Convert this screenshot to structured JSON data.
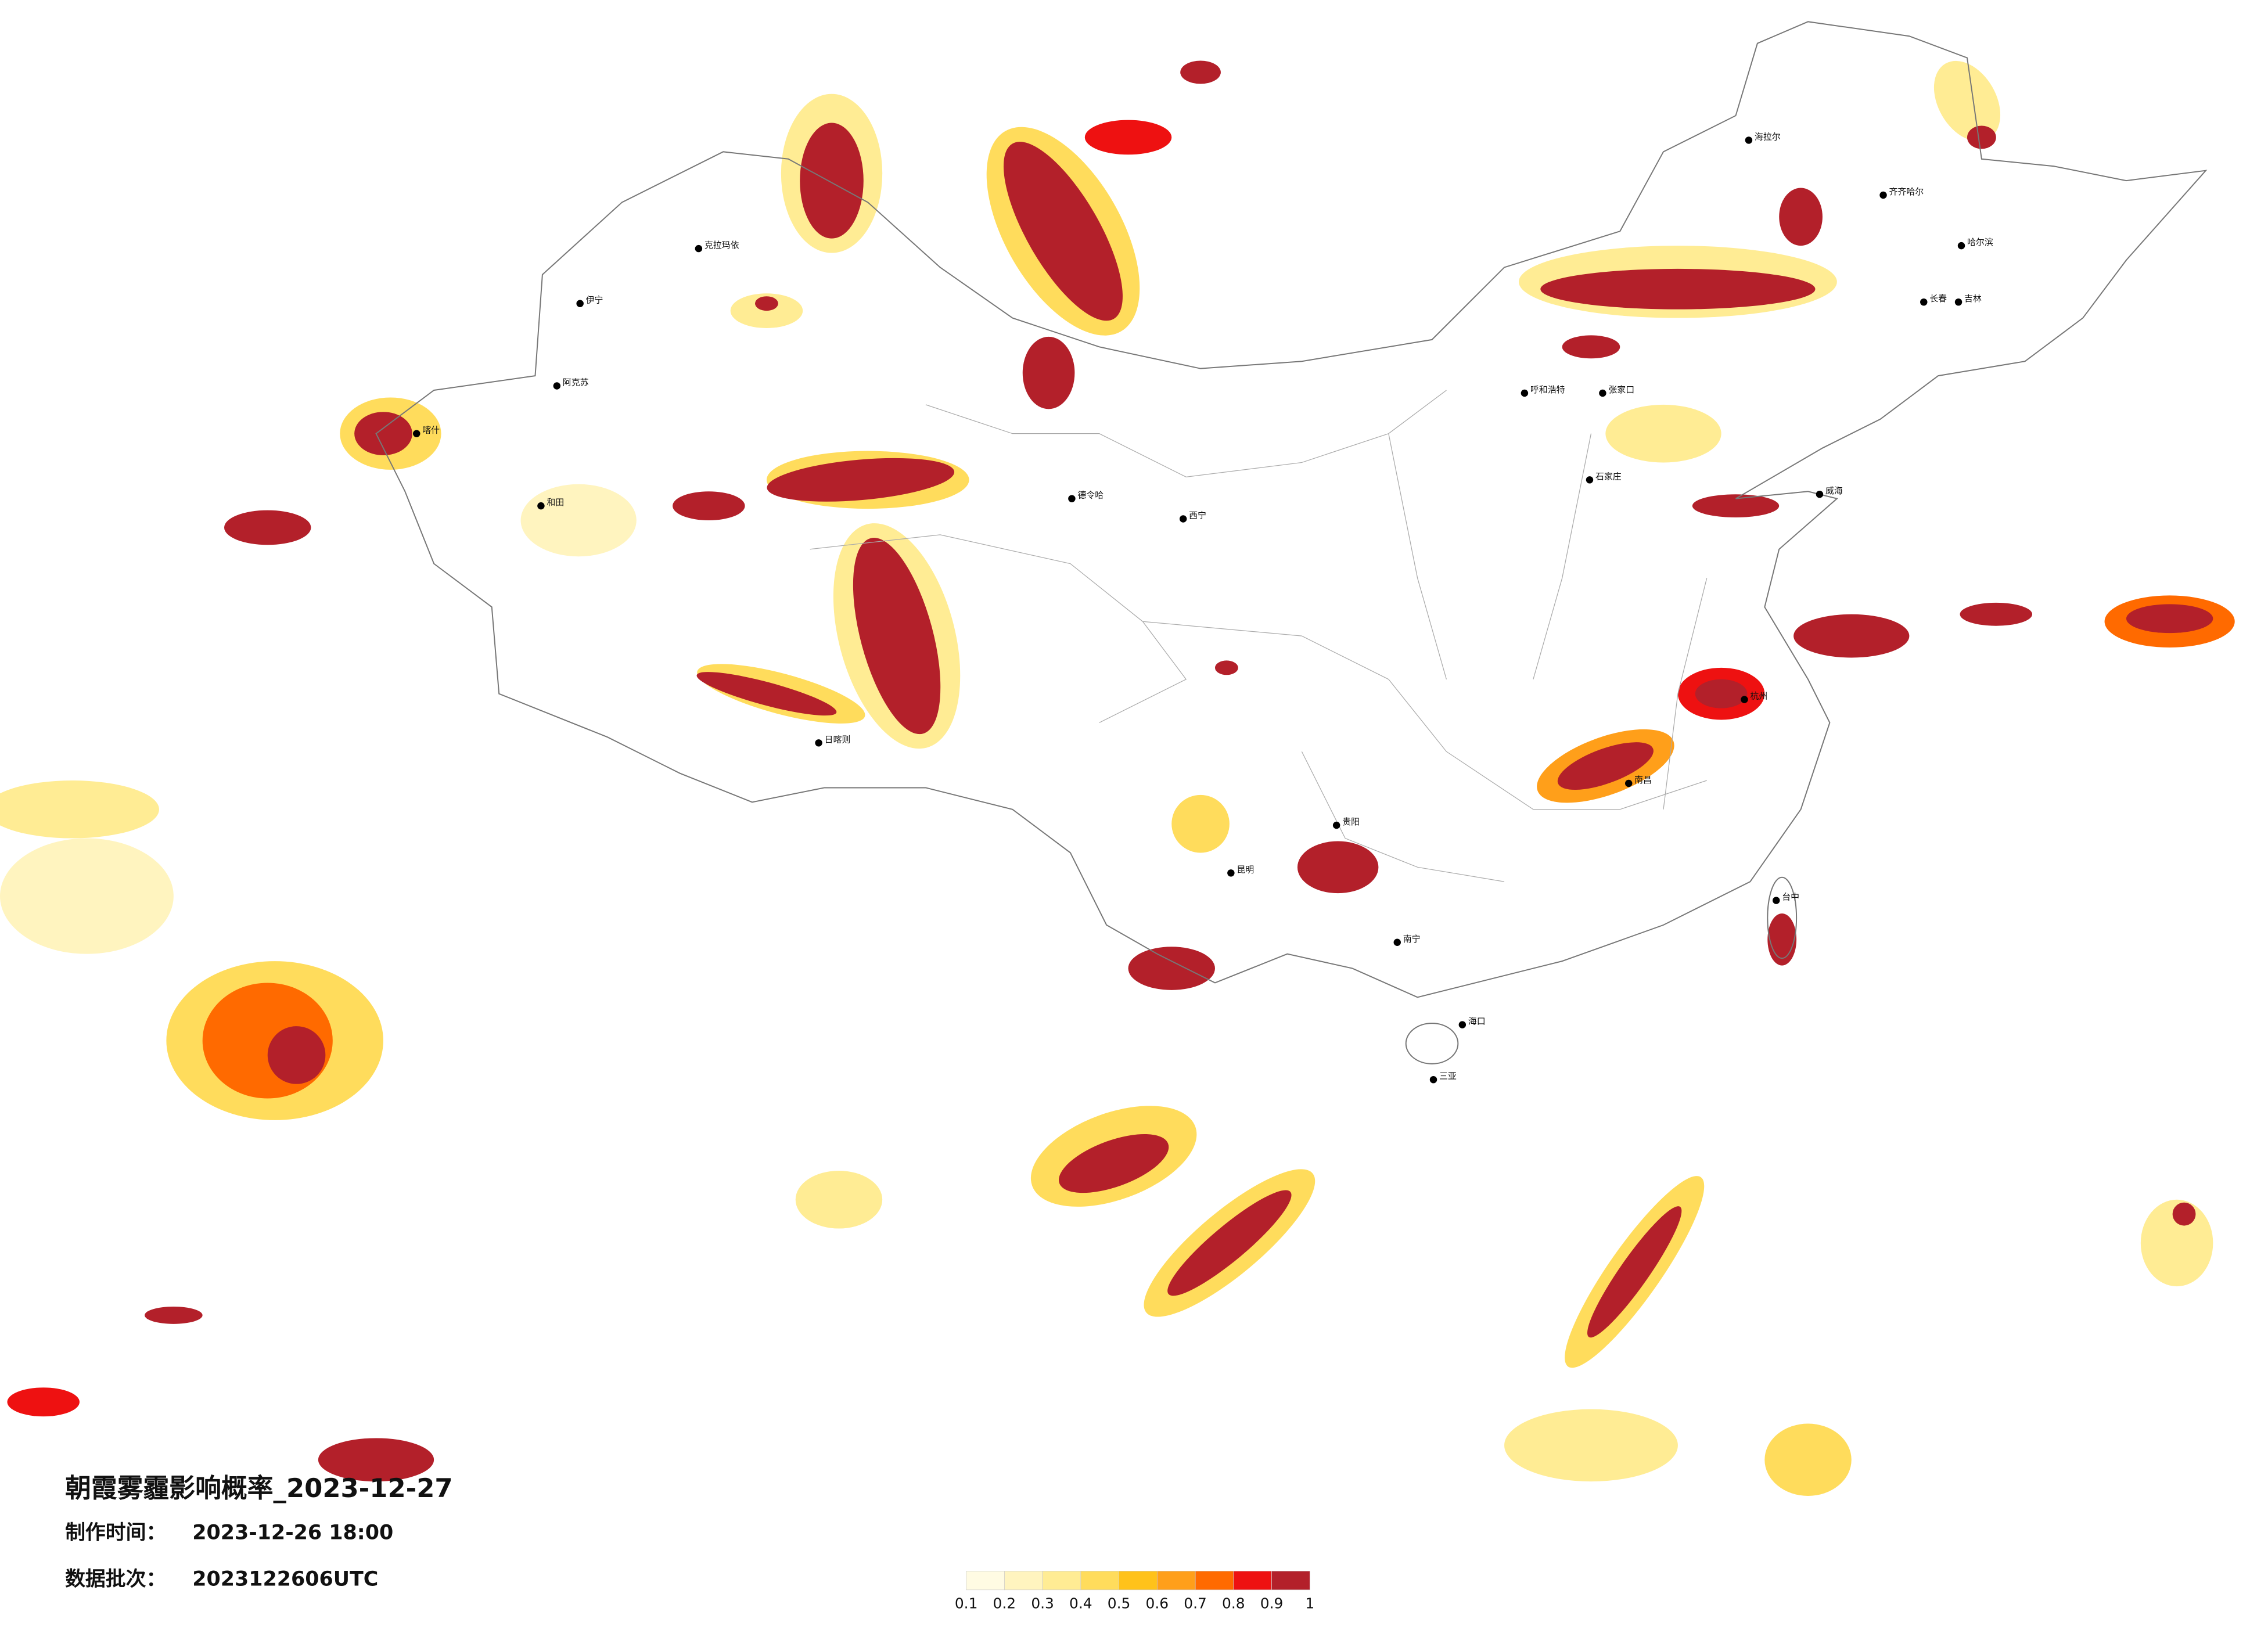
{
  "title": "朝霞雾霾影响概率_2023-12-27",
  "made_time": {
    "label": "制作时间：",
    "value": "2023-12-26 18:00"
  },
  "data_batch": {
    "label": "数据批次：",
    "value": "2023122606UTC"
  },
  "legend": {
    "colors": [
      "#fffbe3",
      "#fff4bf",
      "#ffec94",
      "#ffdc5c",
      "#ffc21a",
      "#ff9f1a",
      "#ff6a00",
      "#ee1111",
      "#b3202a"
    ],
    "ticks": [
      0.1,
      0.2,
      0.3,
      0.4,
      0.5,
      0.6,
      0.7,
      0.8,
      0.9,
      1
    ]
  },
  "cities": [
    "伊宁",
    "克拉玛依",
    "阿克苏",
    "和田",
    "喀什",
    "日喀则",
    "德令哈",
    "西宁",
    "海拉尔",
    "齐齐哈尔",
    "哈尔滨",
    "长春",
    "吉林",
    "呼和浩特",
    "张家口",
    "石家庄",
    "威海",
    "昆明",
    "贵阳",
    "南宁",
    "海口",
    "三亚",
    "台中",
    "南昌",
    "杭州"
  ]
}
